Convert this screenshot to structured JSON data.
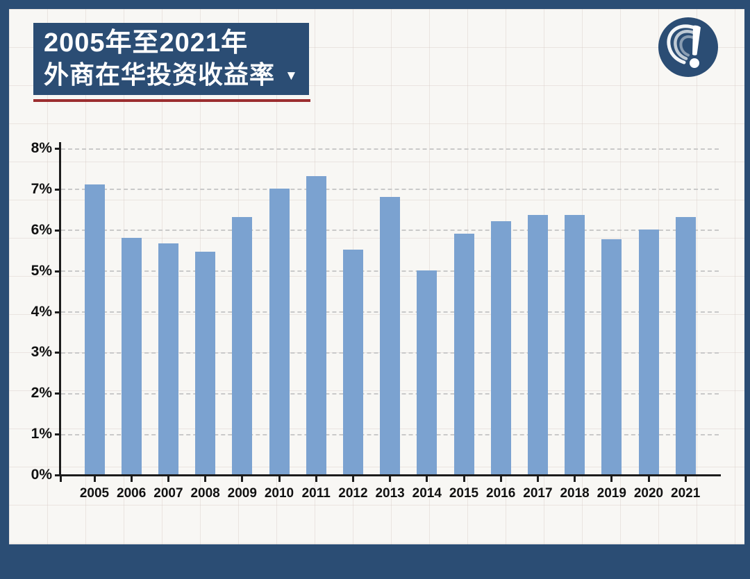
{
  "theme": {
    "frame_color": "#2b4d74",
    "canvas_color": "#f8f7f4",
    "grid_tint": "rgba(213,201,196,0.4)",
    "accent_red": "#9c2e30",
    "bar_color": "#7ba2d0",
    "axis_color": "#1c1c1c",
    "dashed_gridline_color": "#c9c9c9",
    "label_text_color": "#111111",
    "title_text_color": "#ffffff"
  },
  "header": {
    "title_line1": "2005年至2021年",
    "title_line2": "外商在华投资收益率",
    "dropdown_icon": "▼"
  },
  "logo": {
    "icon": "question-exclamation-mark-logo"
  },
  "chart_data": {
    "type": "bar",
    "title": "2005年至2021年外商在华投资收益率",
    "unit": "%",
    "categories": [
      "2005",
      "2006",
      "2007",
      "2008",
      "2009",
      "2010",
      "2011",
      "2012",
      "2013",
      "2014",
      "2015",
      "2016",
      "2017",
      "2018",
      "2019",
      "2020",
      "2021"
    ],
    "values": [
      7.1,
      5.8,
      5.65,
      5.45,
      6.3,
      7.0,
      7.3,
      5.5,
      6.8,
      5.0,
      5.9,
      6.2,
      6.35,
      6.35,
      5.75,
      6.0,
      6.3
    ],
    "ylim": [
      0,
      8
    ],
    "ytick_step": 1,
    "ytick_labels": [
      "0%",
      "1%",
      "2%",
      "3%",
      "4%",
      "5%",
      "6%",
      "7%",
      "8%"
    ],
    "xlabel": "",
    "ylabel": "",
    "grid": "horizontal-dashed",
    "legend": "none"
  }
}
